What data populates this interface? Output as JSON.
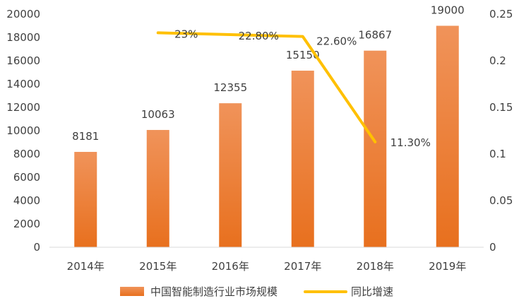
{
  "chart_data": {
    "type": "bar",
    "title": "",
    "xlabel": "",
    "ylabel": "",
    "categories": [
      "2014年",
      "2015年",
      "2016年",
      "2017年",
      "2018年",
      "2019年"
    ],
    "series": [
      {
        "name": "中国智能制造行业市场规模",
        "type": "bar",
        "axis": "left",
        "color": "#ED7D31",
        "values": [
          8181,
          10063,
          12355,
          15150,
          16867,
          19000
        ],
        "labels": [
          "8181",
          "10063",
          "12355",
          "15150",
          "16867",
          "19000"
        ]
      },
      {
        "name": "同比增速",
        "type": "line",
        "axis": "right",
        "color": "#FFC000",
        "values": [
          null,
          0.23,
          0.228,
          0.226,
          0.113,
          null
        ],
        "labels": [
          "",
          "23%",
          "22.80%",
          "22.60%",
          "11.30%",
          ""
        ]
      }
    ],
    "ylim": [
      0,
      20000
    ],
    "yticks": [
      "0",
      "2000",
      "4000",
      "6000",
      "8000",
      "10000",
      "12000",
      "14000",
      "16000",
      "18000",
      "20000"
    ],
    "y2lim": [
      0,
      0.25
    ],
    "y2ticks": [
      "0",
      "0.05",
      "0.1",
      "0.15",
      "0.2",
      "0.25"
    ],
    "grid": false,
    "legend": "bottom"
  }
}
